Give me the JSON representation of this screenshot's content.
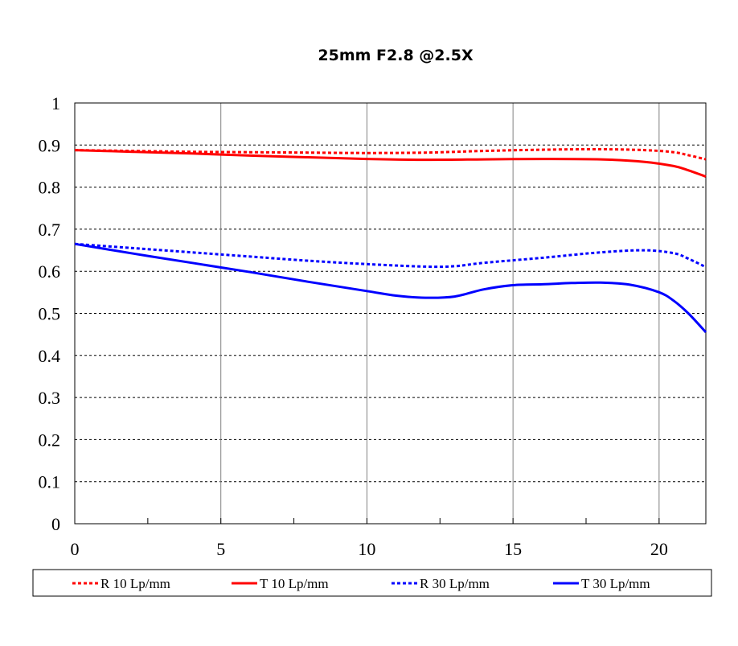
{
  "chart_data": {
    "type": "line",
    "title": "25mm F2.8  @2.5X",
    "xlabel": "",
    "ylabel": "",
    "xlim": [
      0,
      21.6
    ],
    "ylim": [
      0,
      1
    ],
    "x_ticks": [
      0,
      5,
      10,
      15,
      20
    ],
    "x_tick_labels": [
      "0",
      "5",
      "10",
      "15",
      "20"
    ],
    "y_ticks": [
      0,
      0.1,
      0.2,
      0.3,
      0.4,
      0.5,
      0.6,
      0.7,
      0.8,
      0.9,
      1
    ],
    "y_tick_labels": [
      "0",
      "0.1",
      "0.2",
      "0.3",
      "0.4",
      "0.5",
      "0.6",
      "0.7",
      "0.8",
      "0.9",
      "1"
    ],
    "vertical_grid": "solid at major x ticks",
    "horizontal_grid": "dashed",
    "legend_position": "bottom",
    "series": [
      {
        "name": "R 10 Lp/mm",
        "color": "#ff0000",
        "style": "dotted",
        "x": [
          0,
          2,
          4,
          6,
          8,
          10,
          12,
          14,
          16,
          18,
          19.5,
          20.5,
          21,
          21.6
        ],
        "y": [
          0.888,
          0.886,
          0.884,
          0.883,
          0.882,
          0.881,
          0.882,
          0.886,
          0.889,
          0.89,
          0.888,
          0.883,
          0.876,
          0.866
        ]
      },
      {
        "name": "T 10 Lp/mm",
        "color": "#ff0000",
        "style": "solid",
        "x": [
          0,
          2,
          4,
          6,
          8,
          10,
          12,
          14,
          16,
          18,
          19.5,
          20.5,
          21,
          21.6
        ],
        "y": [
          0.888,
          0.884,
          0.88,
          0.875,
          0.871,
          0.867,
          0.865,
          0.866,
          0.867,
          0.866,
          0.86,
          0.85,
          0.84,
          0.825
        ]
      },
      {
        "name": "R 30 Lp/mm",
        "color": "#0000ff",
        "style": "dotted",
        "x": [
          0,
          2,
          4,
          6,
          8,
          10,
          12,
          13,
          14,
          16,
          18,
          19.5,
          20.5,
          21,
          21.6
        ],
        "y": [
          0.665,
          0.655,
          0.645,
          0.635,
          0.625,
          0.617,
          0.611,
          0.612,
          0.62,
          0.632,
          0.645,
          0.65,
          0.643,
          0.63,
          0.61
        ]
      },
      {
        "name": "T 30 Lp/mm",
        "color": "#0000ff",
        "style": "solid",
        "x": [
          0,
          2,
          4,
          6,
          8,
          10,
          11,
          12,
          13,
          14,
          15,
          16,
          17,
          18,
          19,
          20,
          20.5,
          21,
          21.6
        ],
        "y": [
          0.665,
          0.642,
          0.62,
          0.598,
          0.575,
          0.553,
          0.542,
          0.537,
          0.54,
          0.557,
          0.567,
          0.569,
          0.572,
          0.573,
          0.568,
          0.55,
          0.53,
          0.5,
          0.455
        ]
      }
    ]
  }
}
